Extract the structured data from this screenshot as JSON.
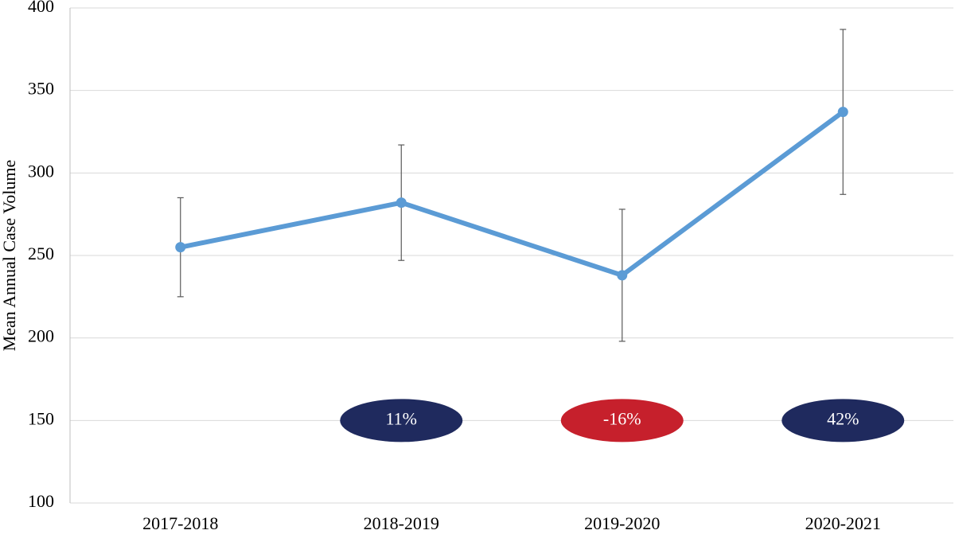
{
  "chart_data": {
    "type": "line",
    "y_label": "Mean Annual Case Volume",
    "categories": [
      "2017-2018",
      "2018-2019",
      "2019-2020",
      "2020-2021"
    ],
    "series": [
      {
        "color": "#5b9bd5",
        "values": [
          255,
          282,
          238,
          337
        ],
        "errors": [
          30,
          35,
          40,
          50
        ]
      }
    ],
    "changes": {
      "values": [
        null,
        11,
        -16,
        42
      ],
      "value_labels": [
        null,
        "11%",
        "-16%",
        "42%"
      ],
      "colors": [
        null,
        "#1f2a5e",
        "#c6202c",
        "#1f2a5e"
      ]
    },
    "ylim": [
      100,
      400
    ],
    "yticks": [
      100,
      150,
      200,
      250,
      300,
      350,
      400
    ],
    "grid": true
  }
}
